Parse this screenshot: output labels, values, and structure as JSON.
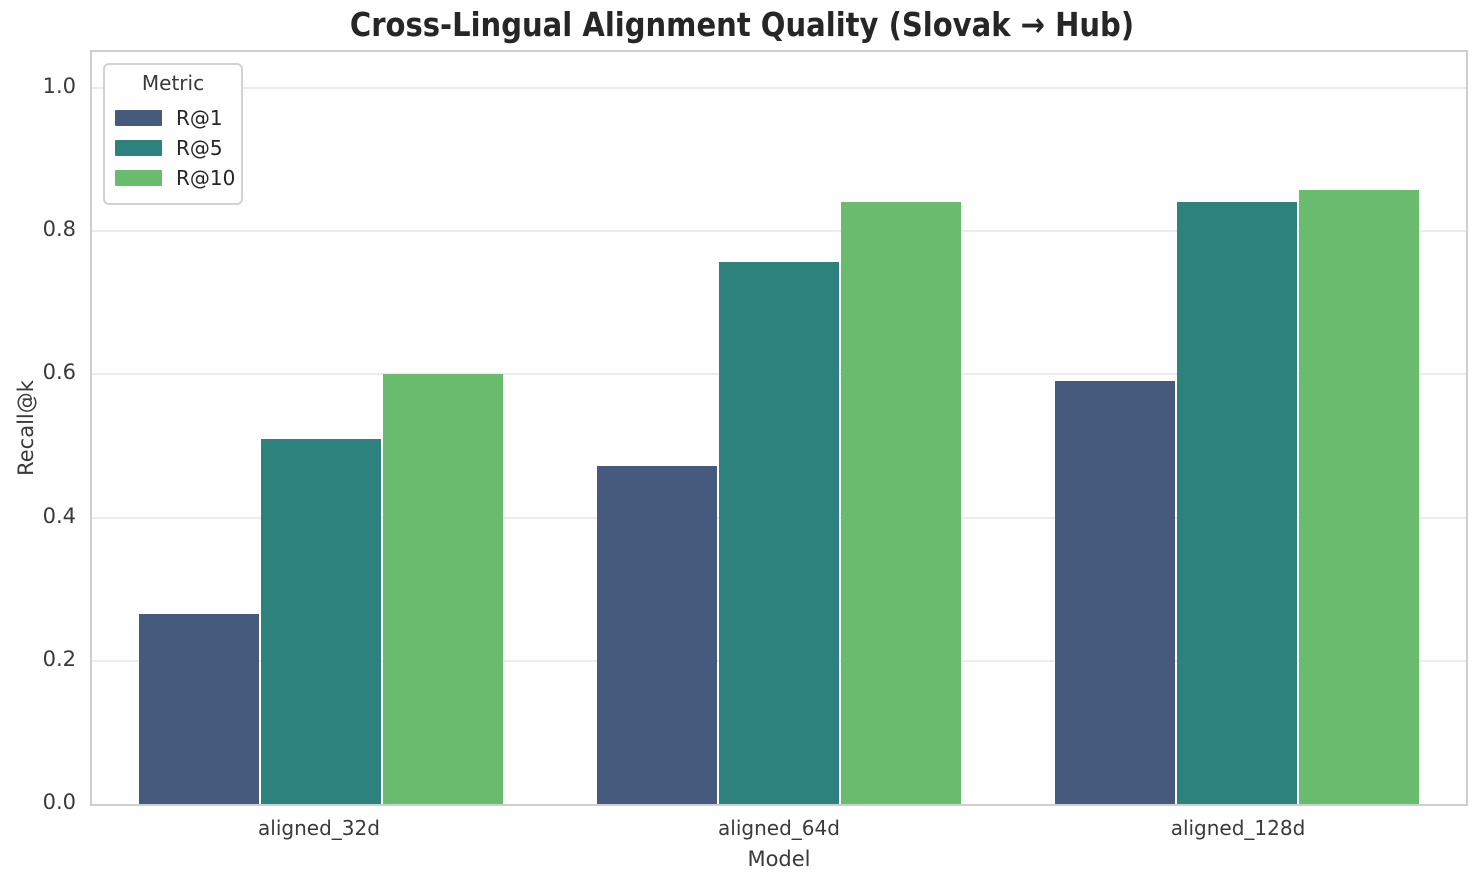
{
  "title": "Cross-Lingual Alignment Quality (Slovak → Hub)",
  "chart_data": {
    "type": "bar",
    "categories": [
      "aligned_32d",
      "aligned_64d",
      "aligned_128d"
    ],
    "series": [
      {
        "name": "R@1",
        "color": "#455a7c",
        "values": [
          0.265,
          0.472,
          0.59
        ]
      },
      {
        "name": "R@5",
        "color": "#2e827d",
        "values": [
          0.51,
          0.757,
          0.84
        ]
      },
      {
        "name": "R@10",
        "color": "#69bb6e",
        "values": [
          0.601,
          0.84,
          0.858
        ]
      }
    ],
    "xlabel": "Model",
    "ylabel": "Recall@k",
    "yticks": [
      "0.0",
      "0.2",
      "0.4",
      "0.6",
      "0.8",
      "1.0"
    ],
    "ylim": [
      0,
      1.05
    ],
    "grid": true,
    "legend_title": "Metric",
    "legend_position": "upper-left"
  },
  "colors": {
    "gridline": "#ececec",
    "spine": "#cfcfcf",
    "title_text": "#262626",
    "tick_text": "#3a3a3a"
  }
}
